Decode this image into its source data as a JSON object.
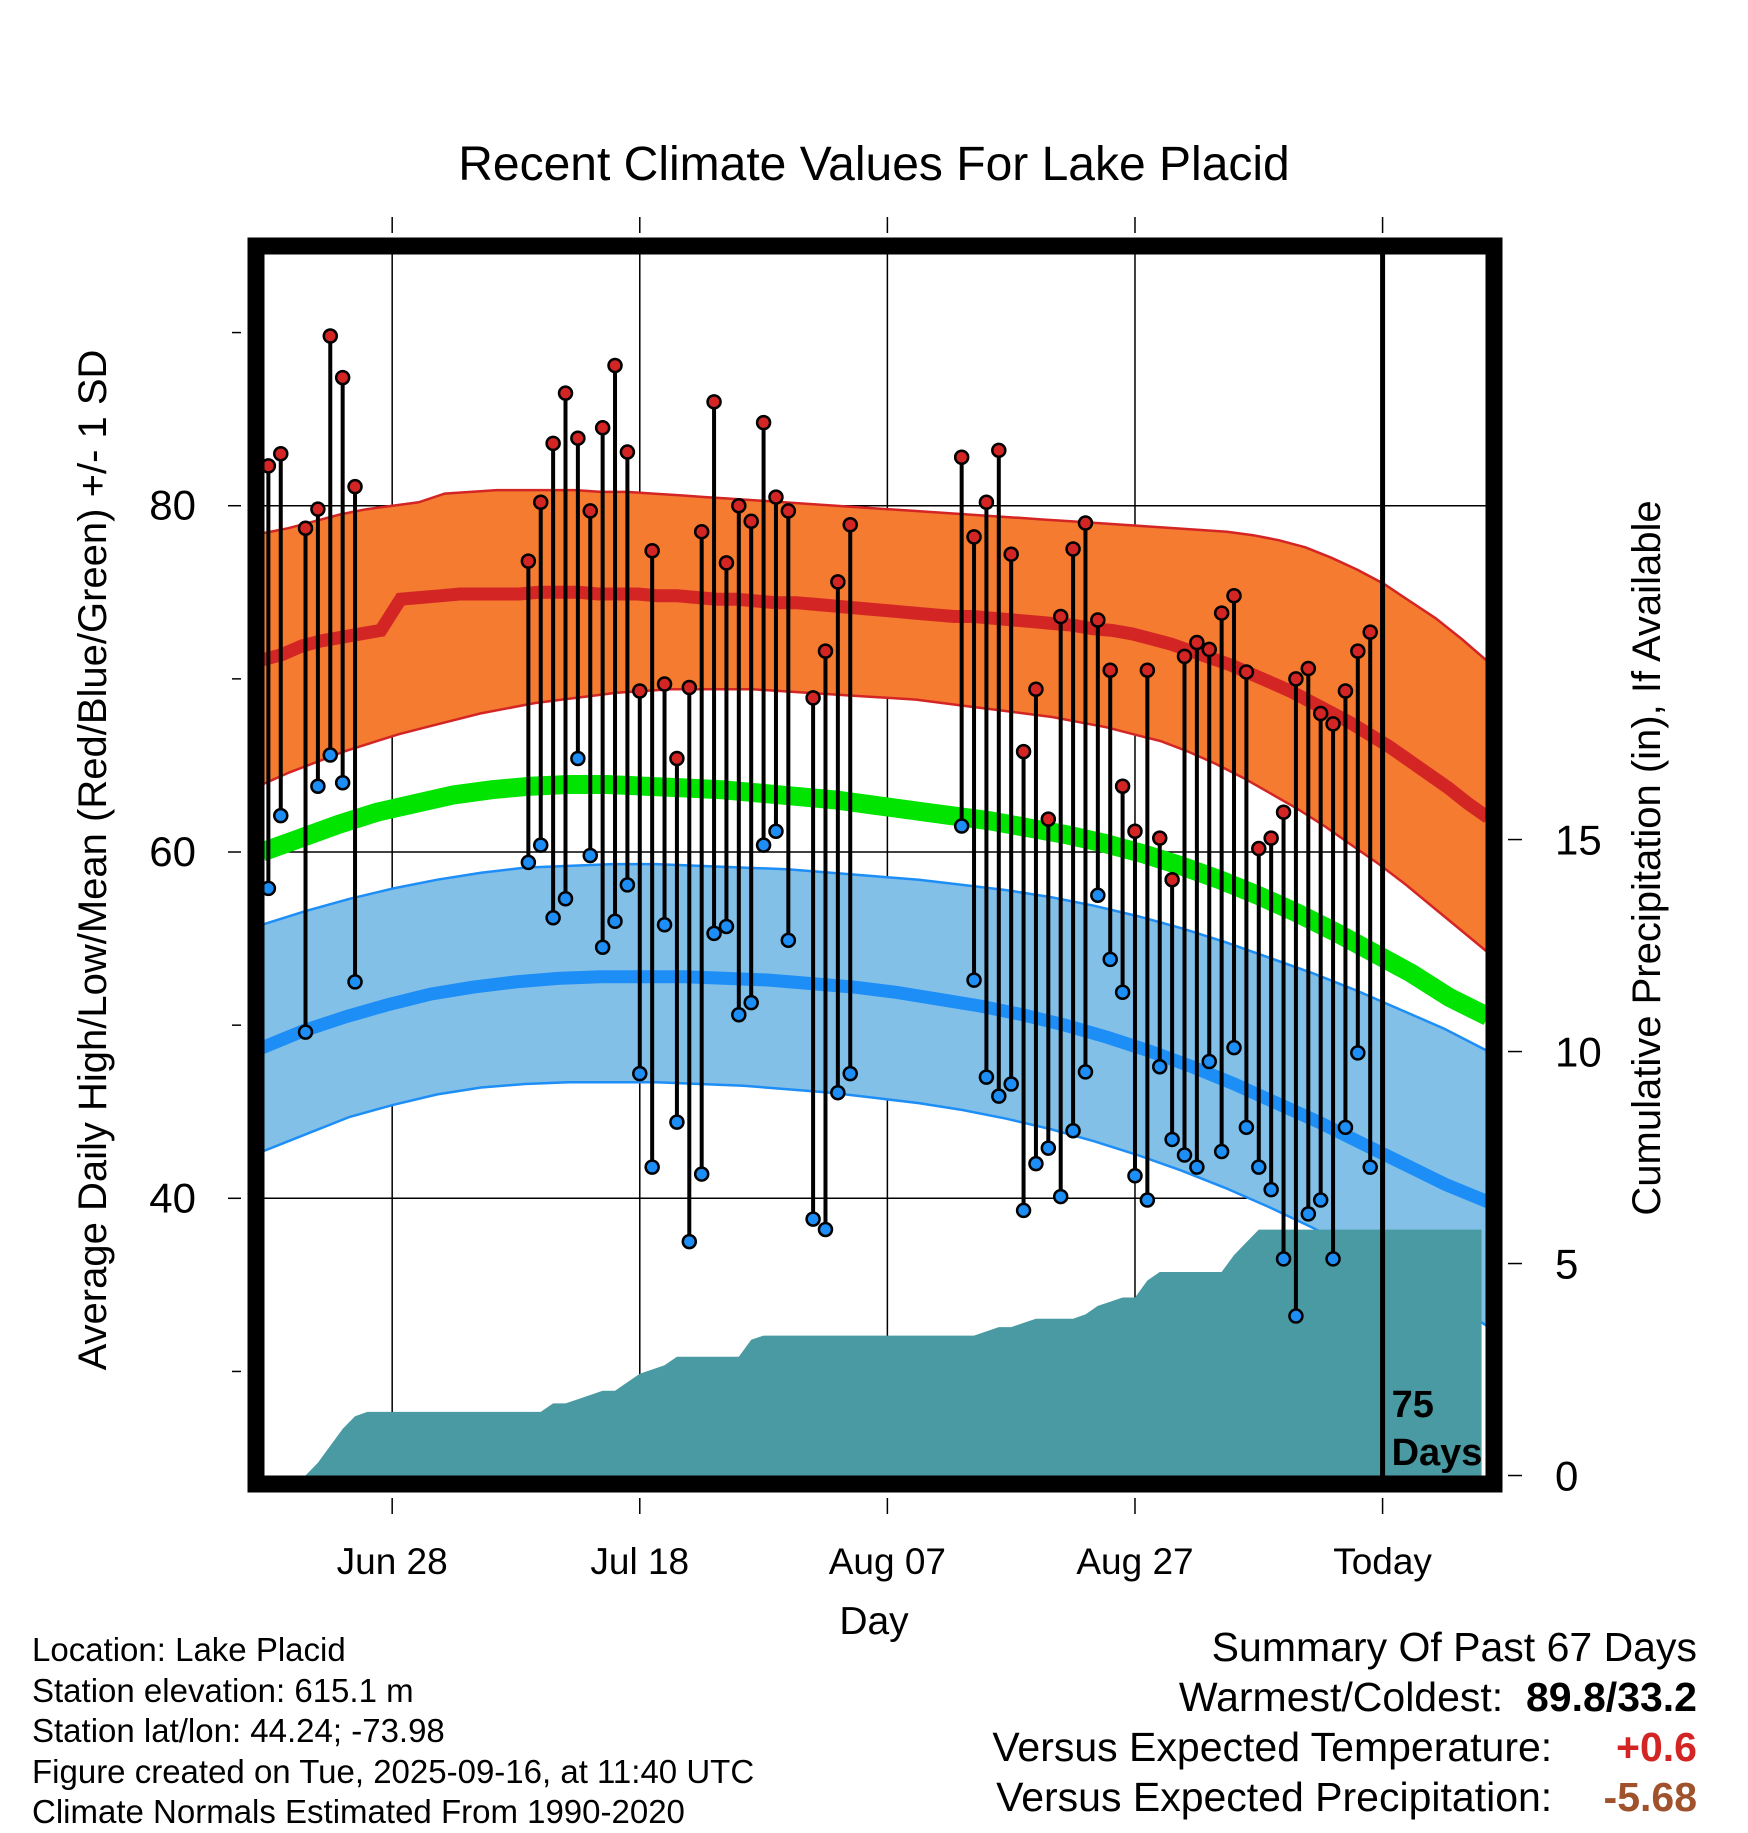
{
  "chart_data": {
    "type": "line",
    "title": "Recent Climate Values For Lake Placid",
    "xlabel": "Day",
    "ylabel": "Average Daily High/Low/Mean (Red/Blue/Green) +/- 1 SD",
    "y2label": "Cumulative Precipitation (in), If Available",
    "x_tick_labels": [
      "Jun 28",
      "Jul 18",
      "Aug 07",
      "Aug 27",
      "Today"
    ],
    "x_tick_days": [
      10,
      30,
      50,
      70,
      90
    ],
    "xlim": [
      -1,
      99
    ],
    "ylim": [
      23.5,
      95
    ],
    "ytick_labels": [
      "40",
      "60",
      "80"
    ],
    "ytick_values": [
      40,
      60,
      80
    ],
    "y_minor_ticks": [
      30,
      50,
      70,
      90
    ],
    "precip_ylim": [
      -0.2,
      29
    ],
    "precip_tick_labels": [
      "0",
      "5",
      "10",
      "15"
    ],
    "precip_tick_values": [
      0,
      5,
      10,
      15
    ],
    "today_day": 90,
    "today_label_line1": "75",
    "today_label_line2": "Days",
    "days": [
      0,
      1,
      3,
      4,
      5,
      6,
      7,
      21,
      22,
      23,
      24,
      25,
      26,
      27,
      28,
      29,
      30,
      31,
      32,
      33,
      34,
      35,
      36,
      37,
      38,
      39,
      40,
      41,
      42,
      44,
      45,
      46,
      47,
      56,
      57,
      58,
      59,
      60,
      61,
      62,
      63,
      64,
      65,
      66,
      67,
      68,
      69,
      70,
      71,
      72,
      73,
      74,
      75,
      76,
      77,
      78,
      79,
      80,
      81,
      82,
      83,
      84,
      85,
      86,
      87,
      88,
      89
    ],
    "daily_high": [
      82.3,
      83.0,
      78.7,
      79.8,
      89.8,
      87.4,
      81.1,
      76.8,
      80.2,
      83.6,
      86.5,
      83.9,
      79.7,
      84.5,
      88.1,
      83.1,
      69.3,
      77.4,
      69.7,
      65.4,
      69.5,
      78.5,
      86.0,
      76.7,
      80.0,
      79.1,
      84.8,
      80.5,
      79.7,
      68.9,
      71.6,
      75.6,
      78.9,
      82.8,
      78.2,
      80.2,
      83.2,
      77.2,
      65.8,
      69.4,
      61.9,
      73.6,
      77.5,
      79.0,
      73.4,
      70.5,
      63.8,
      61.2,
      70.5,
      60.8,
      58.4,
      71.3,
      72.1,
      71.7,
      73.8,
      74.8,
      70.4,
      60.2,
      60.8,
      62.3,
      70.0,
      70.6,
      68.0,
      67.4,
      69.3,
      71.6,
      72.7
    ],
    "daily_low": [
      57.9,
      62.1,
      49.6,
      63.8,
      65.6,
      64.0,
      52.5,
      59.4,
      60.4,
      56.2,
      57.3,
      65.4,
      59.8,
      54.5,
      56.0,
      58.1,
      47.2,
      41.8,
      55.8,
      44.4,
      37.5,
      41.4,
      55.3,
      55.7,
      50.6,
      51.3,
      60.4,
      61.2,
      54.9,
      38.8,
      38.2,
      46.1,
      47.2,
      61.5,
      52.6,
      47.0,
      45.9,
      46.6,
      39.3,
      42.0,
      42.9,
      40.1,
      43.9,
      47.3,
      57.5,
      53.8,
      51.9,
      41.3,
      39.9,
      47.6,
      43.4,
      42.5,
      41.8,
      47.9,
      42.7,
      48.7,
      44.1,
      41.8,
      40.5,
      36.5,
      33.2,
      39.1,
      39.9,
      36.5,
      44.1,
      48.4,
      41.8
    ],
    "normal_high_mean": [
      71.1,
      71.4,
      71.9,
      72.2,
      72.4,
      72.6,
      72.8,
      74.6,
      74.7,
      74.8,
      74.9,
      74.9,
      74.9,
      74.9,
      75.0,
      75.0,
      75.0,
      74.9,
      74.9,
      74.9,
      74.8,
      74.8,
      74.7,
      74.6,
      74.6,
      74.5,
      74.4,
      74.4,
      74.3,
      74.2,
      74.1,
      74.0,
      73.9,
      73.8,
      73.7,
      73.6,
      73.6,
      73.5,
      73.4,
      73.3,
      73.2,
      73.1,
      72.9,
      72.8,
      72.6,
      72.3,
      72.0,
      71.6,
      71.2,
      70.8,
      70.3,
      69.8,
      69.3,
      68.7,
      68.1,
      67.5,
      66.8,
      66.1,
      65.3,
      64.5,
      63.7,
      62.8,
      62.0
    ],
    "normal_high_upper": [
      78.4,
      78.7,
      79.1,
      79.5,
      79.8,
      80.0,
      80.2,
      80.7,
      80.8,
      80.9,
      80.9,
      80.9,
      80.9,
      80.8,
      80.8,
      80.7,
      80.6,
      80.5,
      80.4,
      80.3,
      80.2,
      80.1,
      80.0,
      79.9,
      79.8,
      79.7,
      79.6,
      79.5,
      79.4,
      79.3,
      79.2,
      79.1,
      79.0,
      78.9,
      78.8,
      78.7,
      78.6,
      78.5,
      78.3,
      78.0,
      77.6,
      77.0,
      76.3,
      75.5,
      74.5,
      73.5,
      72.3,
      71.0
    ],
    "normal_high_lower": [
      63.9,
      64.6,
      65.2,
      65.8,
      66.3,
      66.8,
      67.2,
      67.6,
      68.0,
      68.3,
      68.6,
      68.8,
      69.0,
      69.2,
      69.3,
      69.4,
      69.4,
      69.4,
      69.4,
      69.3,
      69.2,
      69.1,
      69.0,
      68.9,
      68.8,
      68.6,
      68.4,
      68.2,
      68.0,
      67.8,
      67.5,
      67.2,
      66.8,
      66.4,
      65.8,
      65.1,
      64.3,
      63.4,
      62.5,
      61.5,
      60.4,
      59.3,
      58.1,
      56.8,
      55.5,
      54.2
    ],
    "normal_mean": [
      60.0,
      60.8,
      61.6,
      62.3,
      62.8,
      63.3,
      63.6,
      63.8,
      63.9,
      63.9,
      63.8,
      63.7,
      63.6,
      63.4,
      63.2,
      63.0,
      62.7,
      62.4,
      62.1,
      61.8,
      61.4,
      61.0,
      60.5,
      59.9,
      59.2,
      58.4,
      57.5,
      56.5,
      55.4,
      54.2,
      53.0,
      51.6,
      50.5
    ],
    "normal_low_mean": [
      48.7,
      49.7,
      50.5,
      51.2,
      51.8,
      52.2,
      52.5,
      52.7,
      52.8,
      52.8,
      52.8,
      52.7,
      52.6,
      52.4,
      52.2,
      51.9,
      51.5,
      51.1,
      50.6,
      50.0,
      49.3,
      48.5,
      47.6,
      46.6,
      45.5,
      44.4,
      43.2,
      42.0,
      40.8,
      39.8
    ],
    "normal_low_upper": [
      55.8,
      56.6,
      57.3,
      57.9,
      58.4,
      58.8,
      59.1,
      59.2,
      59.3,
      59.3,
      59.2,
      59.1,
      59.0,
      58.8,
      58.6,
      58.4,
      58.1,
      57.8,
      57.4,
      56.9,
      56.3,
      55.6,
      54.8,
      53.9,
      53.0,
      52.0,
      50.9,
      49.8,
      48.5
    ],
    "normal_low_lower": [
      42.7,
      43.7,
      44.7,
      45.4,
      46.0,
      46.4,
      46.6,
      46.7,
      46.7,
      46.7,
      46.6,
      46.5,
      46.3,
      46.1,
      45.8,
      45.5,
      45.1,
      44.6,
      44.0,
      43.3,
      42.5,
      41.6,
      40.6,
      39.5,
      38.3,
      37.0,
      35.6,
      34.2,
      32.6
    ],
    "cumulative_precip_days": [
      3,
      4,
      5,
      6,
      7,
      8,
      11,
      21,
      22,
      23,
      24,
      25,
      26,
      27,
      28,
      29,
      30,
      31,
      32,
      33,
      34,
      35,
      36,
      37,
      38,
      39,
      40,
      41,
      42,
      43,
      44,
      45,
      46,
      47,
      56,
      57,
      58,
      59,
      60,
      61,
      62,
      63,
      64,
      65,
      66,
      67,
      68,
      69,
      70,
      71,
      72,
      73,
      74,
      75,
      76,
      77,
      78,
      79,
      80,
      81,
      82,
      83,
      84,
      85,
      86,
      87,
      88,
      89,
      98
    ],
    "cumulative_precip": [
      0,
      0.3,
      0.7,
      1.1,
      1.4,
      1.5,
      1.5,
      1.5,
      1.5,
      1.7,
      1.7,
      1.8,
      1.9,
      2.0,
      2.0,
      2.2,
      2.4,
      2.5,
      2.6,
      2.8,
      2.8,
      2.8,
      2.8,
      2.8,
      2.8,
      3.2,
      3.3,
      3.3,
      3.3,
      3.3,
      3.3,
      3.3,
      3.3,
      3.3,
      3.3,
      3.3,
      3.4,
      3.5,
      3.5,
      3.6,
      3.7,
      3.7,
      3.7,
      3.7,
      3.8,
      4.0,
      4.1,
      4.2,
      4.2,
      4.6,
      4.8,
      4.8,
      4.8,
      4.8,
      4.8,
      4.8,
      5.2,
      5.5,
      5.8,
      5.8,
      5.8,
      5.8,
      5.8,
      5.8,
      5.8,
      5.8,
      5.8,
      5.8,
      5.8
    ],
    "colors": {
      "high_band": "#F47B30",
      "high_line": "#D42525",
      "low_band": "#82C0E8",
      "low_line": "#1E8EF7",
      "mean_line": "#00E400",
      "precip": "#4A9AA3",
      "high_dot": "#D42525",
      "low_dot": "#1E8EF7"
    }
  },
  "info": {
    "location": "Location: Lake Placid",
    "elevation": "Station elevation: 615.1 m",
    "latlon": "Station lat/lon: 44.24; -73.98",
    "created": "Figure created on Tue, 2025-09-16, at 11:40 UTC",
    "normals": "Climate Normals Estimated From 1990-2020"
  },
  "summary": {
    "heading": "Summary Of Past 67 Days",
    "warm_cold_label": "Warmest/Coldest:",
    "warm_cold_value": "89.8/33.2",
    "temp_label": "Versus Expected Temperature:",
    "temp_value": "+0.6",
    "temp_color": "#D42525",
    "precip_label": "Versus Expected Precipitation:",
    "precip_value": "-5.68",
    "precip_color": "#A0522D"
  }
}
